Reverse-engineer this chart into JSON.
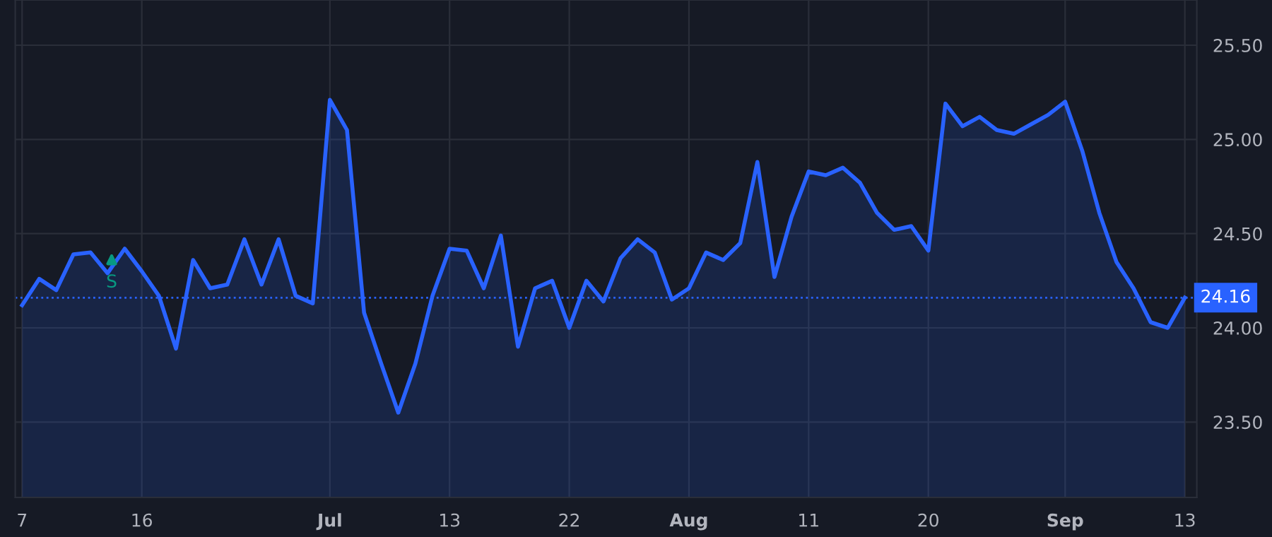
{
  "chart_data": {
    "type": "area",
    "categories": [
      "7",
      null,
      null,
      null,
      null,
      null,
      null,
      "16",
      null,
      null,
      null,
      null,
      null,
      null,
      null,
      null,
      null,
      null,
      "Jul",
      null,
      null,
      null,
      null,
      null,
      null,
      "13",
      null,
      null,
      null,
      null,
      null,
      null,
      "22",
      null,
      null,
      null,
      null,
      null,
      null,
      "Aug",
      null,
      null,
      null,
      null,
      null,
      null,
      "11",
      null,
      null,
      null,
      null,
      null,
      null,
      "20",
      null,
      null,
      null,
      null,
      null,
      null,
      null,
      "Sep",
      null,
      null,
      null,
      null,
      null,
      null,
      "13"
    ],
    "series": [
      {
        "color": "#2962ff",
        "values": [
          24.12,
          24.26,
          24.2,
          24.39,
          24.4,
          24.29,
          24.42,
          24.3,
          24.17,
          23.89,
          24.36,
          24.21,
          24.23,
          24.47,
          24.23,
          24.47,
          24.17,
          24.13,
          25.21,
          25.05,
          24.08,
          23.81,
          23.55,
          23.81,
          24.17,
          24.42,
          24.41,
          24.21,
          24.49,
          23.9,
          24.21,
          24.25,
          24.0,
          24.25,
          24.14,
          24.37,
          24.47,
          24.4,
          24.15,
          24.21,
          24.4,
          24.36,
          24.45,
          24.88,
          24.27,
          24.59,
          24.83,
          24.81,
          24.85,
          24.77,
          24.61,
          24.52,
          24.54,
          24.41,
          25.19,
          25.07,
          25.12,
          25.05,
          25.03,
          25.08,
          25.13,
          25.2,
          24.94,
          24.61,
          24.35,
          24.21,
          24.03,
          24.0,
          24.16
        ]
      }
    ],
    "ylim": [
      23.1,
      25.74
    ],
    "yticks": [
      {
        "value": 23.5,
        "label": "23.50"
      },
      {
        "value": 24.0,
        "label": "24.00"
      },
      {
        "value": 24.5,
        "label": "24.50"
      },
      {
        "value": 25.0,
        "label": "25.00"
      },
      {
        "value": 25.5,
        "label": "25.50"
      }
    ],
    "ref_lines": [
      {
        "axis": "y",
        "value": 24.16,
        "label": "24.16",
        "color": "#2962ff",
        "line_style": "dotted"
      }
    ],
    "annotations": [
      "S"
    ],
    "grid": true,
    "legend": false,
    "marker": "none",
    "line_style": "solid"
  }
}
